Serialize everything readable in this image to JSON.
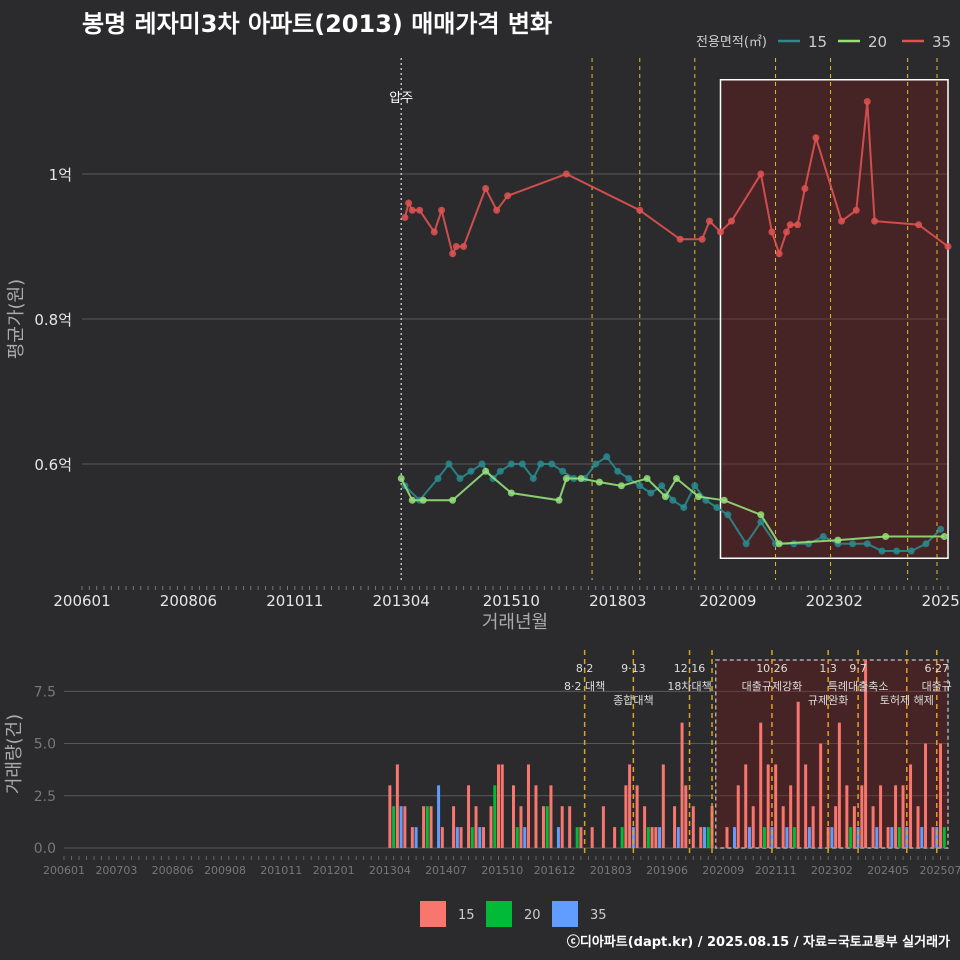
{
  "title": "봉명 레자미3차 아파트(2013) 매매가격 변화",
  "footer": "ⓒ디아파트(dapt.kr) / 2025.08.15 / 자료=국토교통부 실거래가",
  "colors": {
    "s15": "#2a8a8e",
    "s20": "#95e07a",
    "s35": "#e05252",
    "b15": "#f8766d",
    "b20": "#00ba38",
    "b35": "#619cff",
    "policy": "#e0c020",
    "bg": "#2b2b2d"
  },
  "chart_data": [
    {
      "type": "line",
      "ylabel": "평균가(원)",
      "xlabel": "거래년월",
      "x_tick_labels": [
        "200601",
        "200806",
        "201011",
        "201304",
        "201510",
        "201803",
        "202009",
        "202302",
        "2025"
      ],
      "x_ticks": [
        "2006-01",
        "2008-06",
        "2010-11",
        "2013-04",
        "2015-10",
        "2018-03",
        "2020-09",
        "2023-02",
        "2025-07"
      ],
      "xlim": [
        "2006-01",
        "2025-09"
      ],
      "y_tick_labels": [
        "0.6억",
        "0.8억",
        "1억"
      ],
      "y_ticks": [
        0.6,
        0.8,
        1.0
      ],
      "ylim": [
        0.44,
        1.16
      ],
      "legend_title": "전용면적(㎡)",
      "legend_position": "top-right",
      "annotation": "압주",
      "annotation_x": "2013-04",
      "policy_lines": [
        "2017-08",
        "2018-09",
        "2019-12",
        "2021-10",
        "2023-01",
        "2024-10",
        "2025-06"
      ],
      "highlight_box": {
        "x": [
          "2020-07",
          "2025-09"
        ],
        "y": [
          0.47,
          1.13
        ]
      },
      "series": [
        {
          "name": "15",
          "points": [
            [
              "2013-05",
              0.57
            ],
            [
              "2013-09",
              0.55
            ],
            [
              "2014-02",
              0.58
            ],
            [
              "2014-05",
              0.6
            ],
            [
              "2014-08",
              0.58
            ],
            [
              "2014-11",
              0.59
            ],
            [
              "2015-02",
              0.6
            ],
            [
              "2015-05",
              0.58
            ],
            [
              "2015-07",
              0.59
            ],
            [
              "2015-10",
              0.6
            ],
            [
              "2016-01",
              0.6
            ],
            [
              "2016-04",
              0.58
            ],
            [
              "2016-06",
              0.6
            ],
            [
              "2016-09",
              0.6
            ],
            [
              "2016-12",
              0.59
            ],
            [
              "2017-03",
              0.58
            ],
            [
              "2017-06",
              0.58
            ],
            [
              "2017-09",
              0.6
            ],
            [
              "2017-12",
              0.61
            ],
            [
              "2018-03",
              0.59
            ],
            [
              "2018-06",
              0.58
            ],
            [
              "2018-09",
              0.57
            ],
            [
              "2018-12",
              0.56
            ],
            [
              "2019-03",
              0.57
            ],
            [
              "2019-06",
              0.55
            ],
            [
              "2019-09",
              0.54
            ],
            [
              "2019-12",
              0.57
            ],
            [
              "2020-03",
              0.55
            ],
            [
              "2020-06",
              0.54
            ],
            [
              "2020-09",
              0.53
            ],
            [
              "2021-02",
              0.49
            ],
            [
              "2021-06",
              0.52
            ],
            [
              "2021-10",
              0.49
            ],
            [
              "2022-03",
              0.49
            ],
            [
              "2022-07",
              0.49
            ],
            [
              "2022-11",
              0.5
            ],
            [
              "2023-03",
              0.49
            ],
            [
              "2023-07",
              0.49
            ],
            [
              "2023-11",
              0.49
            ],
            [
              "2024-03",
              0.48
            ],
            [
              "2024-07",
              0.48
            ],
            [
              "2024-11",
              0.48
            ],
            [
              "2025-03",
              0.49
            ],
            [
              "2025-07",
              0.51
            ]
          ]
        },
        {
          "name": "20",
          "points": [
            [
              "2013-04",
              0.58
            ],
            [
              "2013-07",
              0.55
            ],
            [
              "2013-10",
              0.55
            ],
            [
              "2014-06",
              0.55
            ],
            [
              "2015-03",
              0.59
            ],
            [
              "2015-10",
              0.56
            ],
            [
              "2016-11",
              0.55
            ],
            [
              "2017-01",
              0.58
            ],
            [
              "2017-05",
              0.58
            ],
            [
              "2017-10",
              0.575
            ],
            [
              "2018-04",
              0.57
            ],
            [
              "2018-11",
              0.58
            ],
            [
              "2019-04",
              0.555
            ],
            [
              "2019-07",
              0.58
            ],
            [
              "2020-01",
              0.555
            ],
            [
              "2020-08",
              0.55
            ],
            [
              "2021-06",
              0.53
            ],
            [
              "2021-11",
              0.49
            ],
            [
              "2023-03",
              0.495
            ],
            [
              "2024-04",
              0.5
            ],
            [
              "2025-08",
              0.5
            ]
          ]
        },
        {
          "name": "35",
          "points": [
            [
              "2013-05",
              0.94
            ],
            [
              "2013-06",
              0.96
            ],
            [
              "2013-07",
              0.95
            ],
            [
              "2013-09",
              0.95
            ],
            [
              "2014-01",
              0.92
            ],
            [
              "2014-03",
              0.95
            ],
            [
              "2014-06",
              0.89
            ],
            [
              "2014-07",
              0.9
            ],
            [
              "2014-09",
              0.9
            ],
            [
              "2015-03",
              0.98
            ],
            [
              "2015-06",
              0.95
            ],
            [
              "2015-09",
              0.97
            ],
            [
              "2017-01",
              1.0
            ],
            [
              "2018-09",
              0.95
            ],
            [
              "2019-08",
              0.91
            ],
            [
              "2020-02",
              0.91
            ],
            [
              "2020-04",
              0.935
            ],
            [
              "2020-07",
              0.92
            ],
            [
              "2020-10",
              0.935
            ],
            [
              "2021-06",
              1.0
            ],
            [
              "2021-09",
              0.92
            ],
            [
              "2021-11",
              0.89
            ],
            [
              "2022-01",
              0.92
            ],
            [
              "2022-02",
              0.93
            ],
            [
              "2022-04",
              0.93
            ],
            [
              "2022-06",
              0.98
            ],
            [
              "2022-09",
              1.05
            ],
            [
              "2023-04",
              0.935
            ],
            [
              "2023-08",
              0.95
            ],
            [
              "2023-11",
              1.1
            ],
            [
              "2024-01",
              0.935
            ],
            [
              "2025-01",
              0.93
            ],
            [
              "2025-09",
              0.9
            ]
          ]
        }
      ]
    },
    {
      "type": "bar",
      "ylabel": "거래량(건)",
      "x_tick_labels": [
        "200601",
        "200703",
        "200806",
        "200908",
        "201011",
        "201201",
        "201304",
        "201407",
        "201510",
        "201612",
        "201803",
        "201906",
        "202009",
        "202111",
        "202302",
        "202405",
        "202507"
      ],
      "x_ticks": [
        "2006-01",
        "2007-03",
        "2008-06",
        "2009-08",
        "2010-11",
        "2012-01",
        "2013-04",
        "2014-07",
        "2015-10",
        "2016-12",
        "2018-03",
        "2019-06",
        "2020-09",
        "2021-11",
        "2023-02",
        "2024-05",
        "2025-07"
      ],
      "y_tick_labels": [
        "0.0",
        "2.5",
        "5.0",
        "7.5"
      ],
      "y_ticks": [
        0,
        2.5,
        5,
        7.5
      ],
      "ylim": [
        0,
        9
      ],
      "legend": [
        "15",
        "20",
        "35"
      ],
      "legend_position": "bottom",
      "events": [
        {
          "x": "2017-08",
          "date": "8·2",
          "label": "8·2 대책"
        },
        {
          "x": "2018-09",
          "date": "9·13",
          "label": "종합대책"
        },
        {
          "x": "2019-12",
          "date": "12·16",
          "label": "18차대책"
        },
        {
          "x": "2020-06",
          "date": "",
          "label": ""
        },
        {
          "x": "2021-10",
          "date": "10·26",
          "label": "대출규제강화"
        },
        {
          "x": "2023-01",
          "date": "1·3",
          "label": "규제완화"
        },
        {
          "x": "2023-09",
          "date": "9·7",
          "label": "특례대출축소"
        },
        {
          "x": "2024-10",
          "date": "",
          "label": "토허제 해제"
        },
        {
          "x": "2025-06",
          "date": "6·27",
          "label": "대출규"
        }
      ],
      "highlight_box": {
        "x": [
          "2020-07",
          "2025-09"
        ],
        "y": [
          0,
          9
        ]
      },
      "series": [
        {
          "name": "15",
          "values": [
            [
              "2013-04",
              3
            ],
            [
              "2013-06",
              4
            ],
            [
              "2013-08",
              2
            ],
            [
              "2013-10",
              1
            ],
            [
              "2014-01",
              2
            ],
            [
              "2014-03",
              2
            ],
            [
              "2014-06",
              1
            ],
            [
              "2014-09",
              2
            ],
            [
              "2014-11",
              1
            ],
            [
              "2015-01",
              3
            ],
            [
              "2015-03",
              2
            ],
            [
              "2015-05",
              1
            ],
            [
              "2015-07",
              2
            ],
            [
              "2015-09",
              4
            ],
            [
              "2015-10",
              4
            ],
            [
              "2016-01",
              3
            ],
            [
              "2016-03",
              2
            ],
            [
              "2016-05",
              4
            ],
            [
              "2016-07",
              3
            ],
            [
              "2016-09",
              2
            ],
            [
              "2016-11",
              3
            ],
            [
              "2017-02",
              2
            ],
            [
              "2017-04",
              2
            ],
            [
              "2017-07",
              1
            ],
            [
              "2017-10",
              1
            ],
            [
              "2018-01",
              2
            ],
            [
              "2018-04",
              1
            ],
            [
              "2018-07",
              3
            ],
            [
              "2018-08",
              4
            ],
            [
              "2018-10",
              3
            ],
            [
              "2018-12",
              2
            ],
            [
              "2019-02",
              1
            ],
            [
              "2019-03",
              1
            ],
            [
              "2019-05",
              4
            ],
            [
              "2019-08",
              2
            ],
            [
              "2019-10",
              6
            ],
            [
              "2019-11",
              3
            ],
            [
              "2020-01",
              2
            ],
            [
              "2020-03",
              1
            ],
            [
              "2020-06",
              2
            ],
            [
              "2020-10",
              1
            ],
            [
              "2021-01",
              3
            ],
            [
              "2021-03",
              4
            ],
            [
              "2021-05",
              2
            ],
            [
              "2021-07",
              6
            ],
            [
              "2021-09",
              4
            ],
            [
              "2021-11",
              4
            ],
            [
              "2022-01",
              2
            ],
            [
              "2022-03",
              3
            ],
            [
              "2022-05",
              7
            ],
            [
              "2022-07",
              4
            ],
            [
              "2022-09",
              2
            ],
            [
              "2022-11",
              5
            ],
            [
              "2023-01",
              1
            ],
            [
              "2023-03",
              2
            ],
            [
              "2023-04",
              6
            ],
            [
              "2023-06",
              3
            ],
            [
              "2023-08",
              2
            ],
            [
              "2023-10",
              3
            ],
            [
              "2023-11",
              9
            ],
            [
              "2024-01",
              2
            ],
            [
              "2024-03",
              3
            ],
            [
              "2024-05",
              1
            ],
            [
              "2024-07",
              3
            ],
            [
              "2024-09",
              3
            ],
            [
              "2024-11",
              4
            ],
            [
              "2025-01",
              2
            ],
            [
              "2025-03",
              5
            ],
            [
              "2025-05",
              1
            ],
            [
              "2025-07",
              5
            ]
          ]
        },
        {
          "name": "20",
          "values": [
            [
              "2013-05",
              2
            ],
            [
              "2014-02",
              2
            ],
            [
              "2015-02",
              1
            ],
            [
              "2015-08",
              3
            ],
            [
              "2016-02",
              1
            ],
            [
              "2016-10",
              2
            ],
            [
              "2017-06",
              1
            ],
            [
              "2018-06",
              1
            ],
            [
              "2019-01",
              1
            ],
            [
              "2020-05",
              1
            ],
            [
              "2021-08",
              1
            ],
            [
              "2022-04",
              1
            ],
            [
              "2023-07",
              1
            ],
            [
              "2024-08",
              1
            ],
            [
              "2025-08",
              1
            ]
          ]
        },
        {
          "name": "35",
          "values": [
            [
              "2013-07",
              2
            ],
            [
              "2013-11",
              1
            ],
            [
              "2014-05",
              3
            ],
            [
              "2014-10",
              1
            ],
            [
              "2015-04",
              1
            ],
            [
              "2016-04",
              1
            ],
            [
              "2017-01",
              1
            ],
            [
              "2018-09",
              1
            ],
            [
              "2019-04",
              1
            ],
            [
              "2019-09",
              1
            ],
            [
              "2020-04",
              1
            ],
            [
              "2020-12",
              1
            ],
            [
              "2021-04",
              1
            ],
            [
              "2021-10",
              1
            ],
            [
              "2022-02",
              1
            ],
            [
              "2022-08",
              1
            ],
            [
              "2023-02",
              1
            ],
            [
              "2023-09",
              1
            ],
            [
              "2024-02",
              1
            ],
            [
              "2024-06",
              1
            ],
            [
              "2024-10",
              1
            ],
            [
              "2025-02",
              1
            ],
            [
              "2025-06",
              1
            ]
          ]
        }
      ]
    }
  ]
}
